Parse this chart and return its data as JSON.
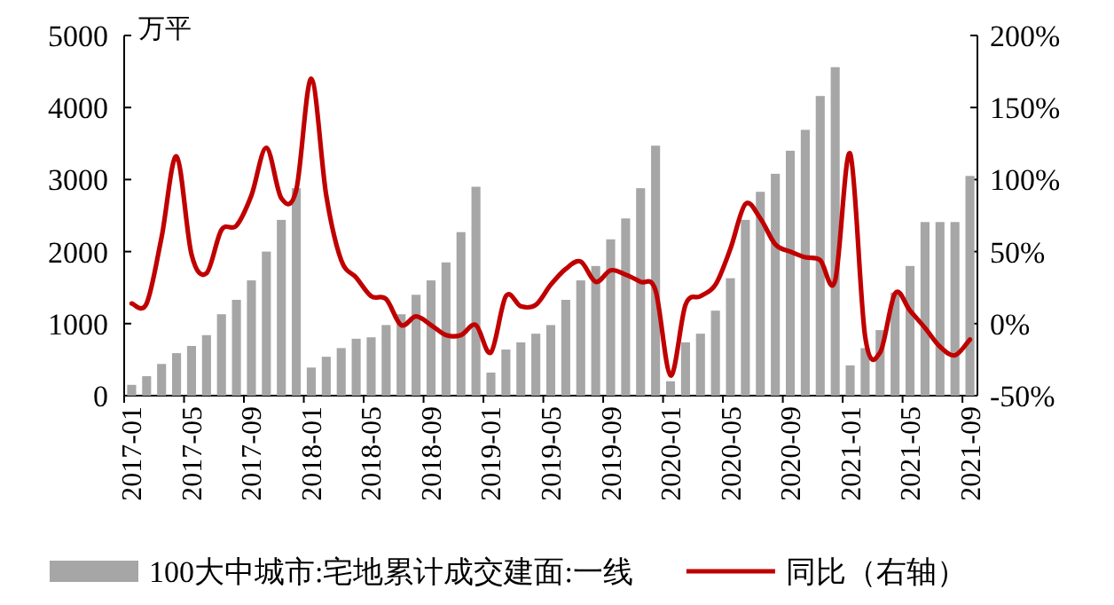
{
  "chart_data": {
    "type": "bar",
    "ylabel": "万平",
    "legend": "bottom",
    "categories": [
      "2017-01",
      null,
      null,
      null,
      "2017-05",
      null,
      null,
      null,
      "2017-09",
      null,
      null,
      null,
      "2018-01",
      null,
      null,
      null,
      "2018-05",
      null,
      null,
      null,
      "2018-09",
      null,
      null,
      null,
      "2019-01",
      null,
      null,
      null,
      "2019-05",
      null,
      null,
      null,
      "2019-09",
      null,
      null,
      null,
      "2020-01",
      null,
      null,
      null,
      "2020-05",
      null,
      null,
      null,
      "2020-09",
      null,
      null,
      null,
      "2021-01",
      null,
      null,
      null,
      "2021-05",
      null,
      null,
      null,
      "2021-09"
    ],
    "ylim": [
      0,
      5000
    ],
    "yticks": [
      0,
      1000,
      2000,
      3000,
      4000,
      5000
    ],
    "y2lim": [
      -50,
      200
    ],
    "y2ticks": [
      {
        "value": -50,
        "label": "-50%"
      },
      {
        "value": 0,
        "label": "0%"
      },
      {
        "value": 50,
        "label": "50%"
      },
      {
        "value": 100,
        "label": "100%"
      },
      {
        "value": 150,
        "label": "150%"
      },
      {
        "value": 200,
        "label": "200%"
      }
    ],
    "series": [
      {
        "name": "100大中城市:宅地累计成交建面:一线",
        "color": "#a6a6a6",
        "values": [
          150,
          270,
          440,
          590,
          690,
          840,
          1130,
          1330,
          1600,
          2000,
          2440,
          2880,
          390,
          540,
          660,
          790,
          810,
          980,
          1130,
          1400,
          1600,
          1850,
          2270,
          2900,
          320,
          640,
          740,
          860,
          980,
          1330,
          1600,
          1800,
          2170,
          2460,
          2880,
          3470,
          200,
          740,
          860,
          1180,
          1630,
          2440,
          2830,
          3080,
          3400,
          3690,
          4160,
          4560,
          420,
          660,
          910,
          1430,
          1800,
          2410,
          2410,
          2410,
          3050
        ]
      },
      {
        "name": "同比（右轴）",
        "type": "line",
        "axis": "y2",
        "color": "#c00000",
        "values": [
          14,
          14,
          60,
          116,
          48,
          35,
          65,
          68,
          89,
          122,
          87,
          93,
          170,
          89,
          44,
          32,
          19,
          17,
          -1,
          5,
          -1,
          -8,
          -8,
          -1,
          -20,
          19,
          12,
          13,
          27,
          38,
          43,
          29,
          37,
          34,
          29,
          23,
          -36,
          13,
          19,
          27,
          52,
          83,
          73,
          55,
          50,
          46,
          44,
          30,
          118,
          -9,
          -20,
          21,
          9,
          -3,
          -16,
          -22,
          -11
        ]
      }
    ]
  }
}
